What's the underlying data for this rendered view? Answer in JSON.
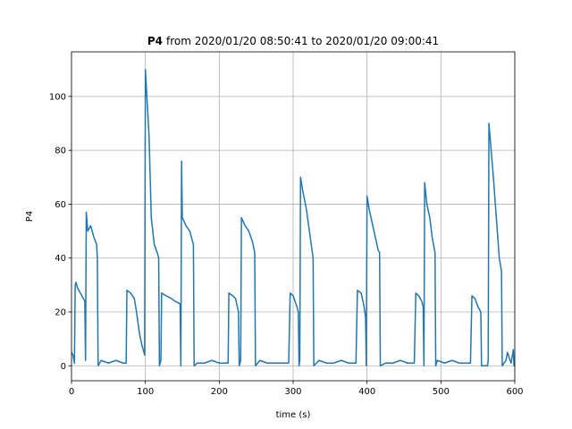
{
  "chart_data": {
    "type": "line",
    "title_bold": "P4",
    "title": "from 2020/01/20 08:50:41 to 2020/01/20 09:00:41",
    "xlabel": "time (s)",
    "ylabel": "P4",
    "x": [
      0,
      2,
      4,
      5,
      6,
      8,
      12,
      16,
      18,
      19,
      20,
      22,
      26,
      30,
      34,
      35,
      36,
      40,
      50,
      60,
      70,
      74,
      75,
      80,
      85,
      88,
      92,
      95,
      98,
      99,
      100,
      102,
      105,
      108,
      112,
      116,
      118,
      119,
      121,
      122,
      128,
      135,
      140,
      147,
      148,
      149,
      150,
      155,
      160,
      165,
      166,
      170,
      180,
      190,
      200,
      210,
      212,
      213,
      218,
      222,
      226,
      227,
      229,
      230,
      235,
      240,
      245,
      248,
      249,
      255,
      265,
      275,
      285,
      294,
      296,
      300,
      305,
      307,
      308,
      309,
      310,
      313,
      318,
      322,
      326,
      327,
      328,
      335,
      345,
      355,
      365,
      375,
      385,
      387,
      392,
      396,
      398,
      399,
      400,
      403,
      407,
      411,
      415,
      417,
      418,
      425,
      435,
      445,
      455,
      464,
      466,
      470,
      474,
      476,
      477,
      478,
      481,
      485,
      488,
      492,
      493,
      495,
      505,
      515,
      525,
      535,
      540,
      542,
      546,
      550,
      554,
      555,
      560,
      563,
      564,
      565,
      568,
      571,
      575,
      579,
      582,
      583,
      588,
      590,
      595,
      598,
      599,
      600
    ],
    "series": [
      {
        "name": "P4",
        "color": "#1f77b4",
        "values": [
          5,
          4,
          1,
          30,
          31,
          29,
          27,
          25,
          24,
          2,
          57,
          50,
          52,
          48,
          45,
          40,
          0,
          2,
          1,
          2,
          1,
          1,
          28,
          27,
          25,
          20,
          12,
          8,
          5,
          4,
          110,
          100,
          85,
          55,
          45,
          42,
          40,
          0,
          2,
          27,
          26,
          25,
          24,
          23,
          0,
          76,
          55,
          52,
          50,
          45,
          0,
          1,
          1,
          2,
          1,
          1,
          1,
          27,
          26,
          25,
          20,
          0,
          2,
          55,
          52,
          50,
          46,
          42,
          0,
          2,
          1,
          1,
          1,
          1,
          27,
          26,
          22,
          20,
          0,
          2,
          70,
          65,
          58,
          50,
          42,
          40,
          0,
          2,
          1,
          1,
          2,
          1,
          1,
          28,
          27,
          22,
          18,
          0,
          63,
          58,
          53,
          48,
          43,
          42,
          0,
          1,
          1,
          2,
          1,
          1,
          27,
          26,
          24,
          22,
          0,
          68,
          60,
          55,
          48,
          42,
          0,
          2,
          1,
          2,
          1,
          1,
          1,
          26,
          25,
          22,
          20,
          0,
          0,
          0,
          2,
          90,
          80,
          70,
          55,
          40,
          35,
          0,
          2,
          5,
          1,
          6,
          0,
          0
        ]
      }
    ],
    "xlim": [
      0,
      600
    ],
    "ylim": [
      -5.55,
      116.55
    ],
    "xticks": [
      0,
      100,
      200,
      300,
      400,
      500,
      600
    ],
    "yticks": [
      0,
      20,
      40,
      60,
      80,
      100
    ],
    "grid": true
  }
}
